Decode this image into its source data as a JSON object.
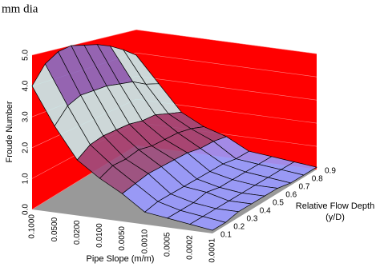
{
  "chart_data": {
    "type": "surface",
    "title": "mm dia",
    "x_label": "Pipe Slope (m/m)",
    "y_label": [
      "Relative Flow Depth",
      "(y/D)"
    ],
    "z_label": "Froude Number",
    "x_categories": [
      "0.1000",
      "0.0500",
      "0.0200",
      "0.0100",
      "0.0050",
      "0.0010",
      "0.0005",
      "0.0002",
      "0.0001"
    ],
    "y_categories": [
      0.1,
      0.2,
      0.3,
      0.4,
      0.5,
      0.6,
      0.7,
      0.8,
      0.9
    ],
    "values": [
      [
        4.0,
        4.6,
        4.9,
        5.0,
        4.9,
        4.8,
        4.6,
        4.3,
        3.9
      ],
      [
        2.8,
        3.3,
        3.5,
        3.5,
        3.5,
        3.4,
        3.3,
        3.0,
        2.8
      ],
      [
        1.8,
        2.1,
        2.2,
        2.2,
        2.2,
        2.1,
        2.1,
        1.9,
        1.7
      ],
      [
        1.3,
        1.5,
        1.5,
        1.6,
        1.5,
        1.5,
        1.5,
        1.4,
        1.2
      ],
      [
        0.9,
        1.0,
        1.1,
        1.1,
        1.1,
        1.1,
        1.0,
        1.0,
        0.9
      ],
      [
        0.4,
        0.5,
        0.5,
        0.5,
        0.5,
        0.5,
        0.5,
        0.4,
        0.4
      ],
      [
        0.3,
        0.3,
        0.3,
        0.4,
        0.3,
        0.3,
        0.3,
        0.3,
        0.3
      ],
      [
        0.2,
        0.2,
        0.2,
        0.2,
        0.2,
        0.2,
        0.2,
        0.2,
        0.2
      ],
      [
        0.1,
        0.1,
        0.2,
        0.2,
        0.2,
        0.2,
        0.1,
        0.1,
        0.1
      ]
    ],
    "zlim": [
      0,
      5
    ],
    "zticks": [
      {
        "value": 0,
        "label": "0.0"
      },
      {
        "value": 1,
        "label": "1.0"
      },
      {
        "value": 2,
        "label": "2.0"
      },
      {
        "value": 3,
        "label": "3.0"
      },
      {
        "value": 4,
        "label": "4.0"
      },
      {
        "value": 5,
        "label": "5.0"
      }
    ],
    "band_colors": [
      "#9999ff",
      "#9e4d7e",
      "#c8eef0",
      "#c8eef0",
      "#8a6fc4"
    ],
    "wall_color": "#ff0000",
    "floor_color": "#999999",
    "grid": true
  }
}
